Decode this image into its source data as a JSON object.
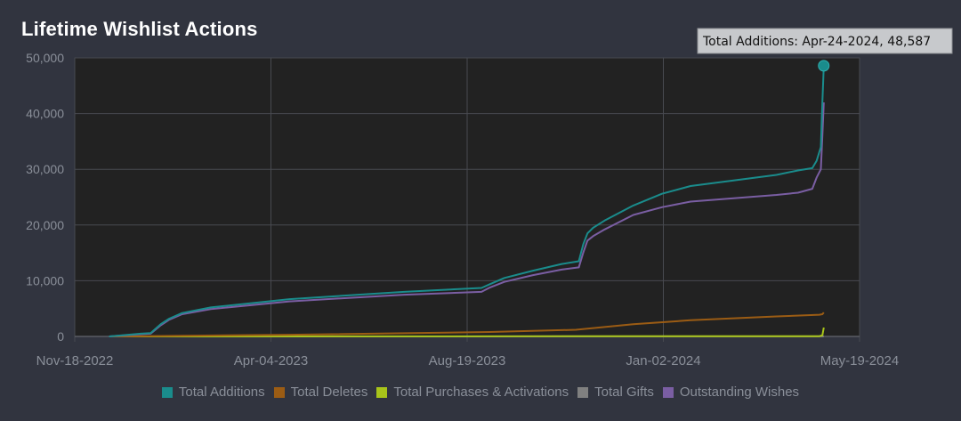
{
  "chart_data": {
    "type": "line",
    "title": "Lifetime Wishlist Actions",
    "x_tick_labels": [
      "Nov-18-2022",
      "Apr-04-2023",
      "Aug-19-2023",
      "Jan-02-2024",
      "May-19-2024"
    ],
    "x_range_days": [
      0,
      548
    ],
    "y_tick_labels": [
      "0",
      "10,000",
      "20,000",
      "30,000",
      "40,000",
      "50,000"
    ],
    "ylim": [
      0,
      50000
    ],
    "grid": true,
    "legend_position": "bottom",
    "tooltip": "Total Additions: Apr-24-2024, 48,587",
    "highlight_point": {
      "series": "Total Additions",
      "x_day": 523,
      "y": 48587
    },
    "series": [
      {
        "name": "Total Additions",
        "color": "#1a8c8c",
        "x": [
          24,
          46,
          53,
          60,
          66,
          75,
          95,
          150,
          230,
          284,
          290,
          300,
          320,
          340,
          352,
          355,
          358,
          362,
          370,
          390,
          410,
          430,
          460,
          490,
          505,
          515,
          518,
          521,
          522,
          523
        ],
        "y": [
          0,
          500,
          600,
          2200,
          3200,
          4200,
          5200,
          6700,
          8000,
          8700,
          9400,
          10500,
          11800,
          13000,
          13500,
          16500,
          18500,
          19500,
          20800,
          23500,
          25600,
          27000,
          28000,
          29000,
          29800,
          30200,
          31500,
          34000,
          42000,
          48587
        ]
      },
      {
        "name": "Total Deletes",
        "color": "#9b5c14",
        "x": [
          24,
          150,
          290,
          350,
          390,
          430,
          490,
          520,
          522,
          523
        ],
        "y": [
          0,
          300,
          800,
          1200,
          2200,
          2900,
          3600,
          3900,
          4000,
          4300
        ]
      },
      {
        "name": "Total Purchases & Activations",
        "color": "#a8c41a",
        "x": [
          24,
          520,
          522,
          523
        ],
        "y": [
          0,
          50,
          200,
          1600
        ]
      },
      {
        "name": "Total Gifts",
        "color": "#808080",
        "x": [
          24,
          523
        ],
        "y": [
          0,
          10
        ]
      },
      {
        "name": "Outstanding Wishes",
        "color": "#7a5ea3",
        "x": [
          24,
          46,
          53,
          60,
          66,
          75,
          95,
          150,
          230,
          284,
          290,
          300,
          320,
          340,
          352,
          355,
          358,
          362,
          370,
          390,
          410,
          430,
          460,
          490,
          505,
          515,
          518,
          521,
          522,
          523
        ],
        "y": [
          0,
          400,
          500,
          2000,
          3000,
          4000,
          4900,
          6300,
          7500,
          8000,
          8800,
          9800,
          11000,
          12000,
          12400,
          15000,
          17200,
          18000,
          19200,
          21800,
          23200,
          24200,
          24800,
          25400,
          25800,
          26500,
          28500,
          30000,
          36000,
          42000
        ]
      }
    ]
  }
}
